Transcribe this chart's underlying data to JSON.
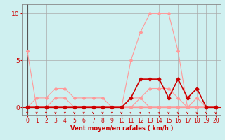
{
  "bg_color": "#cff0f0",
  "grid_color": "#aaaaaa",
  "axis_color": "#888888",
  "xlabel": "Vent moyen/en rafales ( km/h )",
  "xlabel_color": "#cc0000",
  "tick_color": "#cc0000",
  "xlim": [
    -0.5,
    20.5
  ],
  "ylim": [
    -0.8,
    11
  ],
  "yticks": [
    0,
    5,
    10
  ],
  "xticks": [
    0,
    1,
    2,
    3,
    4,
    5,
    6,
    7,
    8,
    9,
    10,
    11,
    12,
    13,
    14,
    15,
    16,
    17,
    18,
    19,
    20
  ],
  "lines": [
    {
      "x": [
        0,
        1,
        2,
        3,
        4,
        5,
        6,
        7,
        8,
        9,
        10,
        11,
        12,
        13,
        14,
        15,
        16,
        17,
        18,
        19,
        20
      ],
      "y": [
        6,
        0,
        0,
        0,
        0,
        0,
        0,
        0,
        0,
        0,
        0,
        0,
        0,
        0,
        0,
        0,
        0,
        0,
        0,
        0,
        0
      ],
      "color": "#ff9999",
      "lw": 0.8,
      "marker": "D",
      "ms": 2
    },
    {
      "x": [
        0,
        1,
        2,
        3,
        4,
        5,
        6,
        7,
        8,
        9,
        10,
        11,
        12,
        13,
        14,
        15,
        16,
        17,
        18,
        19,
        20
      ],
      "y": [
        0,
        1,
        1,
        2,
        2,
        1,
        1,
        1,
        1,
        0,
        0,
        0,
        0,
        0,
        0,
        0,
        0,
        0,
        0,
        0,
        0
      ],
      "color": "#ff9999",
      "lw": 0.8,
      "marker": "D",
      "ms": 2
    },
    {
      "x": [
        0,
        1,
        2,
        3,
        4,
        5,
        6,
        7,
        8,
        9,
        10,
        11,
        12,
        13,
        14,
        15,
        16,
        17,
        18,
        19,
        20
      ],
      "y": [
        0,
        0,
        0,
        1,
        1,
        0,
        0,
        0,
        0,
        0,
        0,
        1,
        1,
        0,
        0,
        0,
        0,
        0,
        0,
        0,
        0
      ],
      "color": "#ff9999",
      "lw": 0.8,
      "marker": "D",
      "ms": 2
    },
    {
      "x": [
        0,
        1,
        2,
        3,
        4,
        5,
        6,
        7,
        8,
        9,
        10,
        11,
        12,
        13,
        14,
        15,
        16,
        17,
        18,
        19,
        20
      ],
      "y": [
        0,
        0,
        0,
        0,
        0,
        0,
        0,
        0,
        0,
        0,
        0,
        5,
        8,
        10,
        10,
        10,
        6,
        0,
        0,
        0,
        0
      ],
      "color": "#ff9999",
      "lw": 0.8,
      "marker": "D",
      "ms": 2
    },
    {
      "x": [
        0,
        1,
        2,
        3,
        4,
        5,
        6,
        7,
        8,
        9,
        10,
        11,
        12,
        13,
        14,
        15,
        16,
        17,
        18,
        19,
        20
      ],
      "y": [
        0,
        0,
        0,
        0,
        0,
        0,
        0,
        0,
        0,
        0,
        0,
        0,
        1,
        2,
        2,
        2,
        1,
        0,
        1,
        0,
        0
      ],
      "color": "#ff9999",
      "lw": 0.8,
      "marker": "D",
      "ms": 2
    },
    {
      "x": [
        0,
        1,
        2,
        3,
        4,
        5,
        6,
        7,
        8,
        9,
        10,
        11,
        12,
        13,
        14,
        15,
        16,
        17,
        18,
        19,
        20
      ],
      "y": [
        0,
        0,
        0,
        0,
        0,
        0,
        0,
        0,
        0,
        0,
        0,
        1,
        3,
        3,
        3,
        1,
        3,
        1,
        2,
        0,
        0
      ],
      "color": "#cc0000",
      "lw": 1.2,
      "marker": "D",
      "ms": 2.5
    }
  ],
  "arrow_downs": [
    0,
    1,
    2,
    3,
    4,
    5,
    6,
    7,
    8,
    9,
    10,
    15,
    16,
    17,
    18,
    19,
    20
  ],
  "arrow_lefts": [
    11,
    12,
    13,
    14
  ],
  "arrow_color": "#cc0000",
  "red_hline_color": "#cc0000",
  "dark_vline_color": "#555555"
}
